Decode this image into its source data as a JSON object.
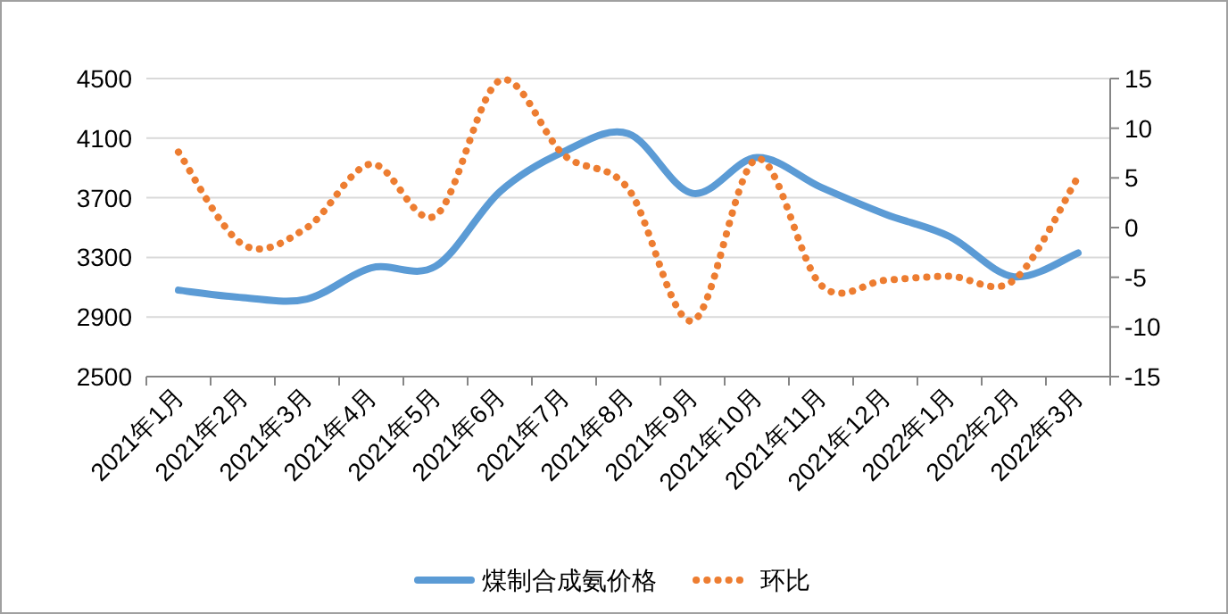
{
  "chart_data": {
    "type": "line",
    "categories": [
      "2021年1月",
      "2021年2月",
      "2021年3月",
      "2021年4月",
      "2021年5月",
      "2021年6月",
      "2021年7月",
      "2021年8月",
      "2021年9月",
      "2021年10月",
      "2021年11月",
      "2021年12月",
      "2022年1月",
      "2022年2月",
      "2022年3月"
    ],
    "series": [
      {
        "name": "煤制合成氨价格",
        "color": "#5b9bd5",
        "line_style": "solid",
        "values": [
          3080,
          3030,
          3020,
          3230,
          3240,
          3740,
          4010,
          4130,
          3730,
          3970,
          3770,
          3590,
          3440,
          3170,
          3330
        ]
      },
      {
        "name": "环比",
        "color": "#ed7d31",
        "line_style": "dotted",
        "axis": "y2",
        "values": [
          7.6,
          -1.7,
          0,
          6.4,
          1.2,
          14.8,
          7.3,
          3.9,
          -9.4,
          6.9,
          -5.8,
          -5.3,
          -4.9,
          -5.3,
          5.1
        ]
      }
    ],
    "ylim": [
      2500,
      4500
    ],
    "yticks": [
      2500,
      2900,
      3300,
      3700,
      4100,
      4500
    ],
    "y2lim": [
      -15,
      15
    ],
    "y2ticks": [
      -15,
      -10,
      -5,
      0,
      5,
      10,
      15
    ],
    "grid": "y",
    "legend": "bottom",
    "marker": "none"
  }
}
